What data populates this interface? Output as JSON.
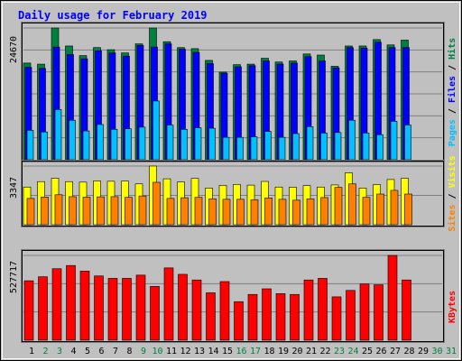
{
  "chart_data": {
    "type": "bar",
    "title": "Daily usage for February 2019",
    "x": [
      "1",
      "2",
      "3",
      "4",
      "5",
      "6",
      "7",
      "8",
      "9",
      "10",
      "11",
      "12",
      "13",
      "14",
      "15",
      "16",
      "17",
      "18",
      "19",
      "20",
      "21",
      "22",
      "23",
      "24",
      "25",
      "26",
      "27",
      "28",
      "29",
      "30",
      "31"
    ],
    "weekend_days": [
      "2",
      "3",
      "9",
      "10",
      "16",
      "17",
      "23",
      "24",
      "30",
      "31"
    ],
    "panels": [
      {
        "name": "hits-files-pages",
        "ymax": 24670,
        "ymax_label": "24670",
        "legend": [
          {
            "text": "Pages",
            "color": "#00c0ff"
          },
          {
            "text": " / ",
            "color": "#000000"
          },
          {
            "text": "Files",
            "color": "#0000ff"
          },
          {
            "text": " / ",
            "color": "#000000"
          },
          {
            "text": "Hits",
            "color": "#008040"
          }
        ],
        "series": [
          {
            "name": "Hits",
            "color": "#008040",
            "values": [
              18100,
              17900,
              24670,
              21300,
              19500,
              21000,
              20600,
              20000,
              21700,
              24670,
              22100,
              21000,
              20800,
              18600,
              16400,
              17800,
              17900,
              19000,
              18300,
              18500,
              19800,
              19600,
              17500,
              21300,
              21300,
              22500,
              21500,
              22400,
              0,
              0,
              0
            ]
          },
          {
            "name": "Files",
            "color": "#0000ff",
            "values": [
              17300,
              17100,
              21100,
              19700,
              18900,
              20400,
              20000,
              19400,
              21400,
              21100,
              21700,
              20700,
              20100,
              18000,
              16200,
              17400,
              17600,
              18500,
              17900,
              18100,
              19300,
              18500,
              17200,
              21000,
              20900,
              22000,
              21000,
              21000,
              0,
              0,
              0
            ]
          },
          {
            "name": "Pages",
            "color": "#00c0ff",
            "values": [
              5500,
              5200,
              9400,
              7400,
              5400,
              6600,
              5700,
              5800,
              6100,
              11000,
              6500,
              5700,
              6000,
              5900,
              4200,
              4200,
              4300,
              5300,
              4200,
              4900,
              6200,
              5000,
              5100,
              7400,
              5000,
              4700,
              7200,
              6500,
              0,
              0,
              0
            ]
          }
        ]
      },
      {
        "name": "visits-sites",
        "ymax": 3347,
        "ymax_label": "3347",
        "legend": [
          {
            "text": "Sites",
            "color": "#ff8000"
          },
          {
            "text": " / ",
            "color": "#000000"
          },
          {
            "text": "Visits",
            "color": "#ffff00"
          }
        ],
        "series": [
          {
            "name": "Visits",
            "color": "#ffff00",
            "values": [
              2150,
              2460,
              2650,
              2460,
              2430,
              2500,
              2480,
              2490,
              2330,
              3347,
              2620,
              2440,
              2640,
              2090,
              2250,
              2300,
              2260,
              2470,
              2150,
              2140,
              2230,
              2150,
              2270,
              2960,
              2090,
              2290,
              2580,
              2650,
              0,
              0,
              0
            ]
          },
          {
            "name": "Sites",
            "color": "#ff8000",
            "values": [
              1500,
              1580,
              1710,
              1600,
              1570,
              1590,
              1600,
              1560,
              1640,
              2420,
              1500,
              1540,
              1560,
              1480,
              1450,
              1450,
              1430,
              1530,
              1450,
              1400,
              1480,
              1550,
              2130,
              2330,
              1560,
              1750,
              1960,
              1750,
              0,
              0,
              0
            ]
          }
        ]
      },
      {
        "name": "kbytes",
        "ymax": 527717,
        "ymax_label": "527717",
        "legend": [
          {
            "text": "KBytes",
            "color": "#ff0000"
          }
        ],
        "series": [
          {
            "name": "KBytes",
            "color": "#ff0000",
            "values": [
              370000,
              395000,
              445000,
              465000,
              430000,
              400000,
              385000,
              385000,
              405000,
              335000,
              450000,
              410000,
              375000,
              295000,
              365000,
              240000,
              285000,
              320000,
              290000,
              285000,
              375000,
              385000,
              270000,
              310000,
              350000,
              345000,
              527717,
              375000,
              0,
              0,
              0
            ]
          }
        ]
      }
    ]
  },
  "colors": {
    "background": "#c0c0c0",
    "title": "#0000ff",
    "day_label": "#000000",
    "weekend_label": "#008040",
    "gridline": "#808080"
  }
}
